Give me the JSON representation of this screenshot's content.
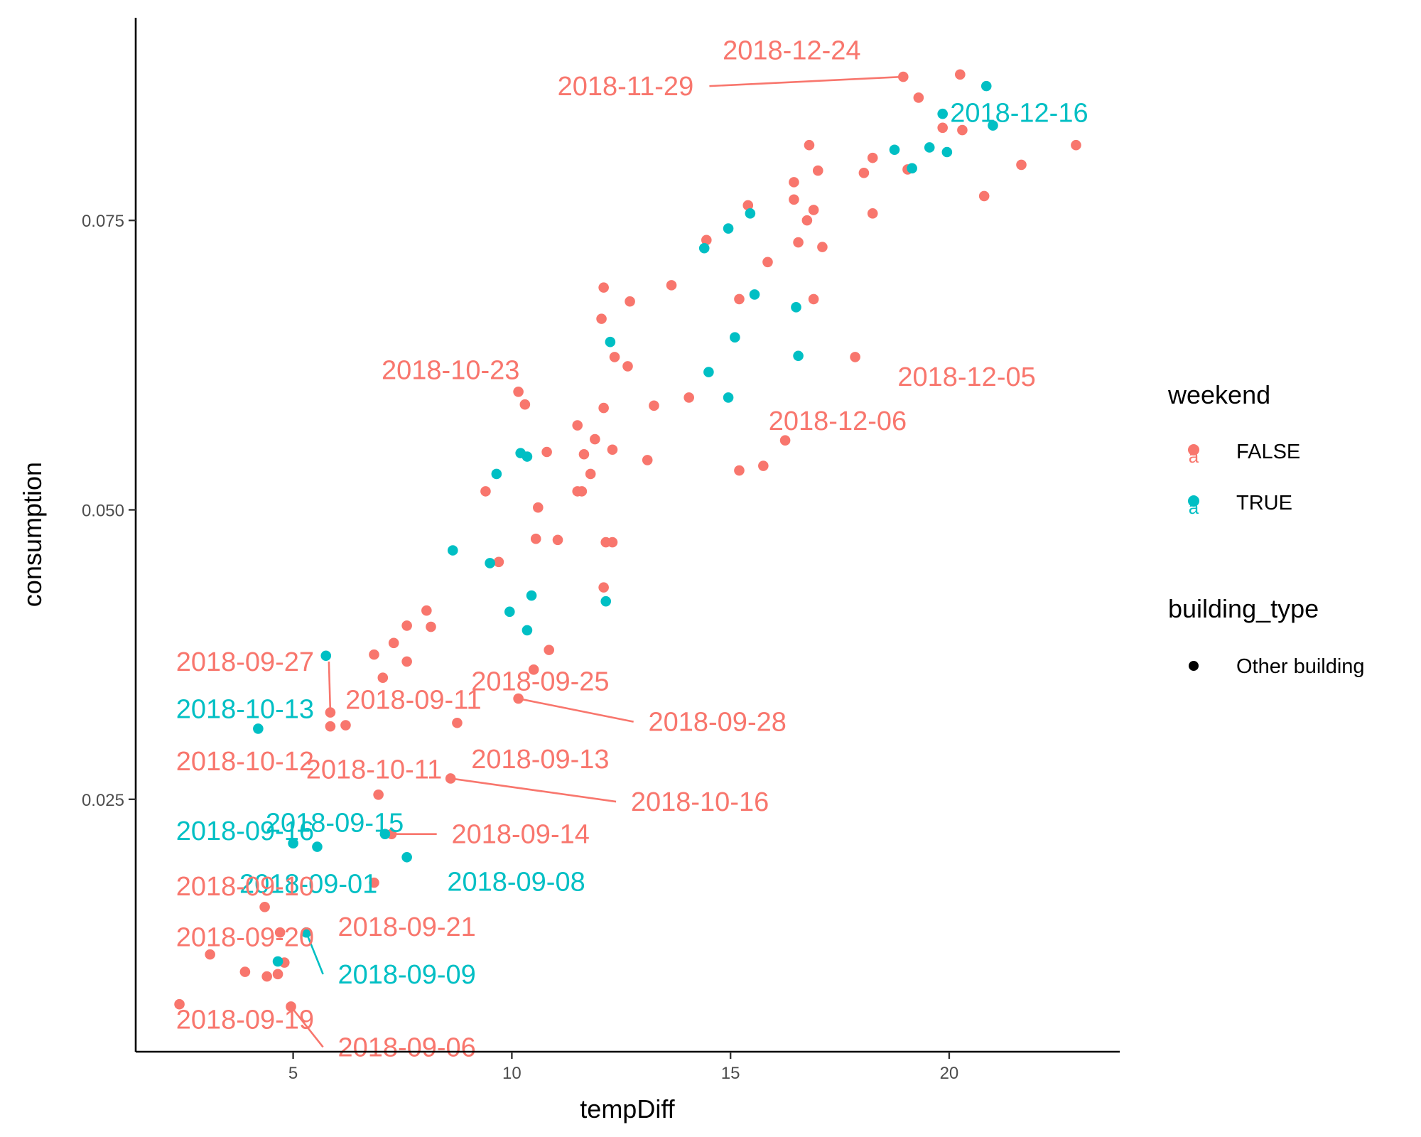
{
  "chart_data": {
    "type": "scatter",
    "xlabel": "tempDiff",
    "ylabel": "consumption",
    "xlim": [
      1.4,
      23.9
    ],
    "ylim": [
      0.0032,
      0.0925
    ],
    "x_ticks": [
      {
        "value": 5,
        "label": "5"
      },
      {
        "value": 10,
        "label": "10"
      },
      {
        "value": 15,
        "label": "15"
      },
      {
        "value": 20,
        "label": "20"
      }
    ],
    "y_ticks": [
      {
        "value": 0.025,
        "label": "0.025"
      },
      {
        "value": 0.05,
        "label": "0.050"
      },
      {
        "value": 0.075,
        "label": "0.075"
      }
    ],
    "grid": false,
    "legend_position": "right",
    "colors": {
      "FALSE": "#F8766D",
      "TRUE": "#00BFC4"
    },
    "legend": {
      "weekend_title": "weekend",
      "weekend_items": [
        {
          "key": "FALSE",
          "label": "FALSE"
        },
        {
          "key": "TRUE",
          "label": "TRUE"
        }
      ],
      "building_title": "building_type",
      "building_items": [
        {
          "label": "Other building"
        }
      ]
    },
    "points_false": [
      [
        18.95,
        0.0874
      ],
      [
        20.25,
        0.0876
      ],
      [
        19.3,
        0.0856
      ],
      [
        19.85,
        0.083
      ],
      [
        20.3,
        0.0828
      ],
      [
        16.8,
        0.0815
      ],
      [
        22.9,
        0.0815
      ],
      [
        18.25,
        0.0804
      ],
      [
        21.65,
        0.0798
      ],
      [
        17.0,
        0.0793
      ],
      [
        18.05,
        0.0791
      ],
      [
        19.05,
        0.0794
      ],
      [
        16.45,
        0.0783
      ],
      [
        20.8,
        0.0771
      ],
      [
        15.4,
        0.0763
      ],
      [
        16.45,
        0.0768
      ],
      [
        16.9,
        0.0759
      ],
      [
        18.25,
        0.0756
      ],
      [
        16.75,
        0.075
      ],
      [
        14.45,
        0.0733
      ],
      [
        16.55,
        0.0731
      ],
      [
        17.1,
        0.0727
      ],
      [
        15.85,
        0.0714
      ],
      [
        12.1,
        0.0692
      ],
      [
        13.65,
        0.0694
      ],
      [
        15.2,
        0.0682
      ],
      [
        16.9,
        0.0682
      ],
      [
        12.7,
        0.068
      ],
      [
        12.05,
        0.0665
      ],
      [
        12.35,
        0.0632
      ],
      [
        12.65,
        0.0624
      ],
      [
        17.85,
        0.0632
      ],
      [
        10.15,
        0.0602
      ],
      [
        10.3,
        0.0591
      ],
      [
        13.25,
        0.059
      ],
      [
        14.05,
        0.0597
      ],
      [
        12.1,
        0.0588
      ],
      [
        11.5,
        0.0573
      ],
      [
        11.9,
        0.0561
      ],
      [
        12.3,
        0.0552
      ],
      [
        10.8,
        0.055
      ],
      [
        11.65,
        0.0548
      ],
      [
        16.25,
        0.056
      ],
      [
        13.1,
        0.0543
      ],
      [
        11.8,
        0.0531
      ],
      [
        15.75,
        0.0538
      ],
      [
        15.2,
        0.0534
      ],
      [
        9.4,
        0.0516
      ],
      [
        11.5,
        0.0516
      ],
      [
        11.6,
        0.0516
      ],
      [
        10.6,
        0.0502
      ],
      [
        10.55,
        0.0475
      ],
      [
        11.05,
        0.0474
      ],
      [
        12.15,
        0.0472
      ],
      [
        12.3,
        0.0472
      ],
      [
        9.7,
        0.0455
      ],
      [
        12.1,
        0.0433
      ],
      [
        8.05,
        0.0413
      ],
      [
        7.6,
        0.04
      ],
      [
        8.15,
        0.0399
      ],
      [
        7.3,
        0.0385
      ],
      [
        6.85,
        0.0375
      ],
      [
        10.85,
        0.0379
      ],
      [
        7.6,
        0.0369
      ],
      [
        10.5,
        0.0362
      ],
      [
        7.05,
        0.0355
      ],
      [
        10.15,
        0.0337
      ],
      [
        5.85,
        0.0325
      ],
      [
        5.85,
        0.0313
      ],
      [
        6.2,
        0.0314
      ],
      [
        8.75,
        0.0316
      ],
      [
        8.6,
        0.0268
      ],
      [
        6.95,
        0.0254
      ],
      [
        7.25,
        0.022
      ],
      [
        6.85,
        0.0178
      ],
      [
        4.35,
        0.0157
      ],
      [
        4.7,
        0.0135
      ],
      [
        3.1,
        0.0116
      ],
      [
        4.8,
        0.0109
      ],
      [
        3.9,
        0.0101
      ],
      [
        4.4,
        0.0097
      ],
      [
        4.65,
        0.0099
      ],
      [
        2.4,
        0.0073
      ],
      [
        4.95,
        0.0071
      ]
    ],
    "points_true": [
      [
        20.85,
        0.0866
      ],
      [
        19.85,
        0.0842
      ],
      [
        21.0,
        0.0832
      ],
      [
        18.75,
        0.0811
      ],
      [
        19.55,
        0.0813
      ],
      [
        19.95,
        0.0809
      ],
      [
        19.15,
        0.0795
      ],
      [
        15.45,
        0.0756
      ],
      [
        14.95,
        0.0743
      ],
      [
        14.4,
        0.0726
      ],
      [
        15.55,
        0.0686
      ],
      [
        16.5,
        0.0675
      ],
      [
        15.1,
        0.0649
      ],
      [
        12.25,
        0.0645
      ],
      [
        16.55,
        0.0633
      ],
      [
        14.5,
        0.0619
      ],
      [
        14.95,
        0.0597
      ],
      [
        10.2,
        0.0549
      ],
      [
        10.35,
        0.0546
      ],
      [
        9.65,
        0.0531
      ],
      [
        8.65,
        0.0465
      ],
      [
        9.5,
        0.0454
      ],
      [
        12.15,
        0.0421
      ],
      [
        10.45,
        0.0426
      ],
      [
        9.95,
        0.0412
      ],
      [
        10.35,
        0.0396
      ],
      [
        5.75,
        0.0374
      ],
      [
        4.2,
        0.0311
      ],
      [
        7.1,
        0.022
      ],
      [
        5.0,
        0.0212
      ],
      [
        5.55,
        0.0209
      ],
      [
        7.6,
        0.02
      ],
      [
        5.3,
        0.0135
      ],
      [
        4.65,
        0.011
      ]
    ],
    "labels": [
      {
        "text": "2018-12-24",
        "weekend": "FALSE",
        "x": 16.4,
        "y": 0.0897,
        "px": 18.95,
        "py": 0.0874
      },
      {
        "text": "2018-11-29",
        "weekend": "FALSE",
        "x": 12.6,
        "y": 0.0866,
        "px": 18.95,
        "py": 0.0874,
        "leader": true
      },
      {
        "text": "2018-12-16",
        "weekend": "TRUE",
        "x": 21.6,
        "y": 0.0843,
        "px": 19.85,
        "py": 0.0842
      },
      {
        "text": "2018-10-23",
        "weekend": "FALSE",
        "x": 8.6,
        "y": 0.0621,
        "px": 10.15,
        "py": 0.0602
      },
      {
        "text": "2018-12-05",
        "weekend": "FALSE",
        "x": 20.4,
        "y": 0.0615,
        "px": 17.85,
        "py": 0.0632
      },
      {
        "text": "2018-12-06",
        "weekend": "FALSE",
        "x": 17.45,
        "y": 0.0577,
        "px": 14.95,
        "py": 0.0597
      },
      {
        "text": "2018-09-27",
        "weekend": "FALSE",
        "x": 3.9,
        "y": 0.0369,
        "px": 5.85,
        "py": 0.0325,
        "leader": true
      },
      {
        "text": "2018-09-25",
        "weekend": "FALSE",
        "x": 10.65,
        "y": 0.0352,
        "px": 10.5,
        "py": 0.0362
      },
      {
        "text": "2018-10-13",
        "weekend": "TRUE",
        "x": 3.9,
        "y": 0.0328,
        "px": 4.2,
        "py": 0.0311
      },
      {
        "text": "2018-09-11",
        "weekend": "FALSE",
        "x": 7.75,
        "y": 0.0336,
        "px": 5.85,
        "py": 0.0313
      },
      {
        "text": "2018-09-28",
        "weekend": "FALSE",
        "x": 14.7,
        "y": 0.0317,
        "px": 10.15,
        "py": 0.0337,
        "leader": true
      },
      {
        "text": "2018-09-13",
        "weekend": "FALSE",
        "x": 10.65,
        "y": 0.0285,
        "px": 8.75,
        "py": 0.0316
      },
      {
        "text": "2018-10-12",
        "weekend": "FALSE",
        "x": 3.9,
        "y": 0.0283,
        "px": 4.35,
        "py": 0.0268
      },
      {
        "text": "2018-10-11",
        "weekend": "FALSE",
        "x": 6.85,
        "y": 0.0276,
        "px": 6.95,
        "py": 0.0254
      },
      {
        "text": "2018-10-16",
        "weekend": "FALSE",
        "x": 14.3,
        "y": 0.0248,
        "px": 8.6,
        "py": 0.0268,
        "leader": true
      },
      {
        "text": "2018-09-15",
        "weekend": "TRUE",
        "x": 5.95,
        "y": 0.023,
        "px": 5.0,
        "py": 0.0212
      },
      {
        "text": "2018-09-16",
        "weekend": "TRUE",
        "x": 3.9,
        "y": 0.0223,
        "px": 5.55,
        "py": 0.0209
      },
      {
        "text": "2018-09-14",
        "weekend": "FALSE",
        "x": 10.2,
        "y": 0.022,
        "px": 7.25,
        "py": 0.022,
        "leader": true
      },
      {
        "text": "2018-09-01",
        "weekend": "TRUE",
        "x": 5.35,
        "y": 0.0177,
        "px": 6.85,
        "py": 0.0178
      },
      {
        "text": "2018-09-08",
        "weekend": "TRUE",
        "x": 10.1,
        "y": 0.0179,
        "px": 7.6,
        "py": 0.02
      },
      {
        "text": "2018-09-10",
        "weekend": "FALSE",
        "x": 3.9,
        "y": 0.0175,
        "px": 4.35,
        "py": 0.0157
      },
      {
        "text": "2018-09-21",
        "weekend": "FALSE",
        "x": 7.6,
        "y": 0.014,
        "px": 6.85,
        "py": 0.0178
      },
      {
        "text": "2018-09-20",
        "weekend": "FALSE",
        "x": 3.9,
        "y": 0.0131,
        "px": 4.7,
        "py": 0.0135
      },
      {
        "text": "2018-09-09",
        "weekend": "TRUE",
        "x": 7.6,
        "y": 0.0099,
        "px": 5.3,
        "py": 0.0135,
        "leader": true
      },
      {
        "text": "2018-09-19",
        "weekend": "FALSE",
        "x": 3.9,
        "y": 0.006,
        "px": 2.4,
        "py": 0.0073
      },
      {
        "text": "2018-09-06",
        "weekend": "FALSE",
        "x": 7.6,
        "y": 0.0036,
        "px": 4.95,
        "py": 0.0071,
        "leader": true
      }
    ]
  }
}
